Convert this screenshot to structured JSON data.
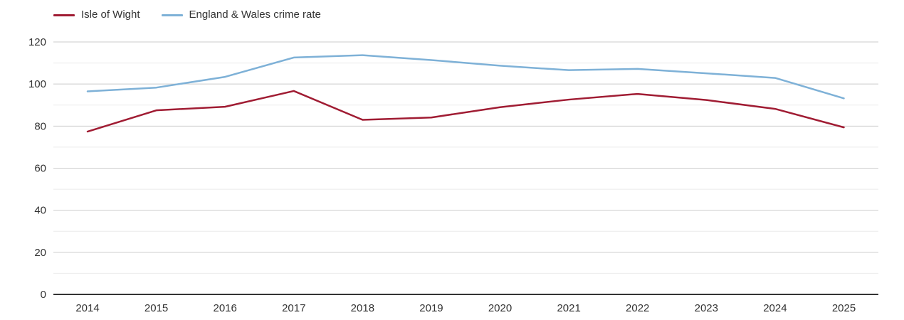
{
  "chart_data": {
    "type": "line",
    "title": "",
    "xlabel": "",
    "ylabel": "",
    "x": [
      2014,
      2015,
      2016,
      2017,
      2018,
      2019,
      2020,
      2021,
      2022,
      2023,
      2024,
      2025
    ],
    "series": [
      {
        "name": "Isle of Wight",
        "color": "#a01c33",
        "values": [
          77.4,
          87.5,
          89.2,
          96.7,
          83.0,
          84.1,
          89.0,
          92.6,
          95.3,
          92.4,
          88.2,
          79.4
        ]
      },
      {
        "name": "England & Wales crime rate",
        "color": "#7eb1d7",
        "values": [
          96.5,
          98.3,
          103.4,
          112.6,
          113.7,
          111.4,
          108.7,
          106.6,
          107.2,
          105.1,
          102.9,
          93.2
        ]
      }
    ],
    "ylim": [
      0,
      120
    ],
    "yticks": [
      0,
      20,
      40,
      60,
      80,
      100,
      120
    ],
    "minor_yticks": [
      10,
      30,
      50,
      70,
      90,
      110
    ],
    "grid": true,
    "legend_position": "top-left",
    "axis_color": "#333333",
    "major_grid_color": "#cccccc",
    "minor_grid_color": "#ebebeb",
    "text_color": "#333333"
  }
}
